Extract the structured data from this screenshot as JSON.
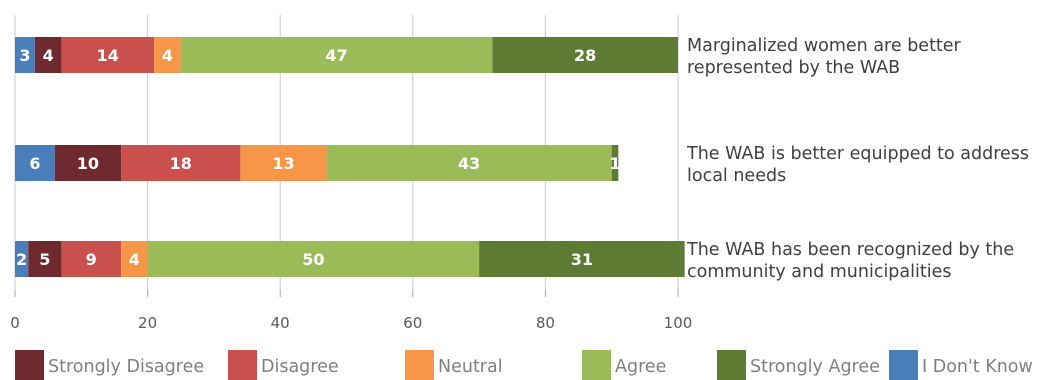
{
  "chart_data": {
    "type": "bar",
    "orientation": "horizontal",
    "stacked": true,
    "categories": [
      [
        "Marginalized women are better",
        "represented by the WAB"
      ],
      [
        "The WAB is better equipped to address",
        "local needs"
      ],
      [
        "The WAB has been recognized by the",
        "community and municipalities"
      ]
    ],
    "series": [
      {
        "name": "I Don't Know",
        "color": "#4a7ebb",
        "values": [
          3,
          6,
          2
        ]
      },
      {
        "name": "Strongly Disagree",
        "color": "#6e2a2e",
        "values": [
          4,
          10,
          5
        ]
      },
      {
        "name": "Disagree",
        "color": "#c9504d",
        "values": [
          14,
          18,
          9
        ]
      },
      {
        "name": "Neutral",
        "color": "#f79646",
        "values": [
          4,
          13,
          4
        ]
      },
      {
        "name": "Agree",
        "color": "#9bbb59",
        "values": [
          47,
          43,
          50
        ]
      },
      {
        "name": "Strongly Agree",
        "color": "#5e7b33",
        "values": [
          28,
          1,
          31
        ]
      }
    ],
    "legend_order": [
      "Strongly Disagree",
      "Disagree",
      "Neutral",
      "Agree",
      "Strongly Agree",
      "I Don't Know"
    ],
    "legend_position": "bottom",
    "xlim": [
      0,
      100
    ],
    "xticks": [
      "0",
      "20",
      "40",
      "60",
      "80",
      "100"
    ],
    "grid": true,
    "data_labels": true
  }
}
